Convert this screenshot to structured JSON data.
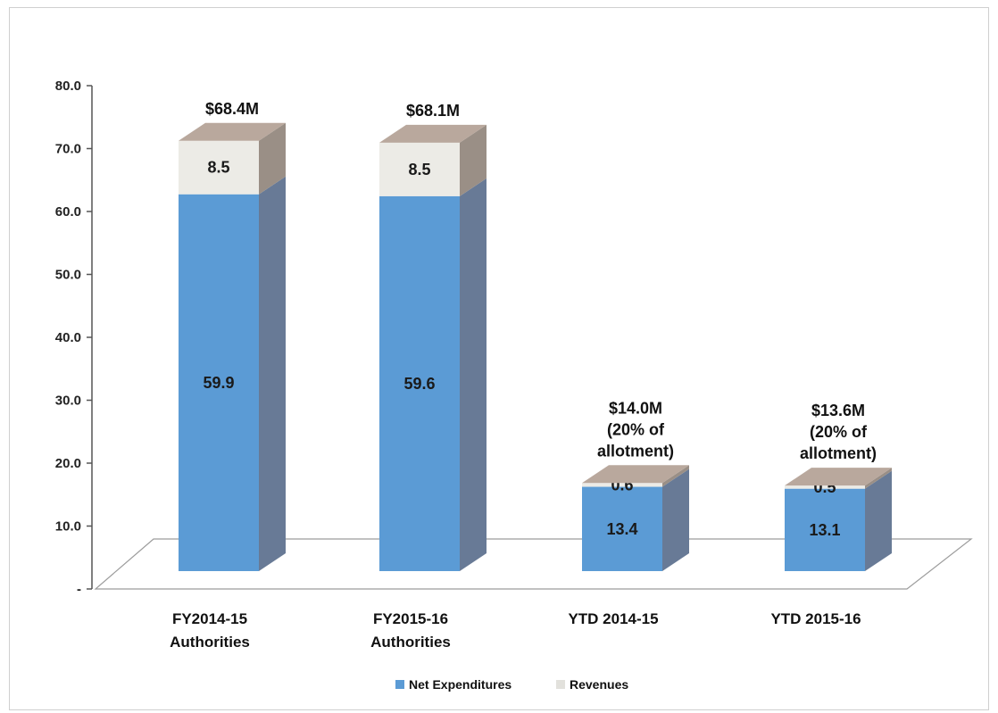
{
  "chart_data": {
    "type": "bar",
    "stacked": true,
    "style": "3d",
    "categories": [
      [
        "FY2014-15",
        "Authorities"
      ],
      [
        "FY2015-16",
        "Authorities"
      ],
      [
        "YTD 2014-15"
      ],
      [
        "YTD 2015-16"
      ]
    ],
    "series": [
      {
        "name": "Net Expenditures",
        "values": [
          59.9,
          59.6,
          13.4,
          13.1
        ],
        "color": "#5b9bd5"
      },
      {
        "name": "Revenues",
        "values": [
          8.5,
          8.5,
          0.6,
          0.5
        ],
        "color": "#ecebe6"
      }
    ],
    "data_labels": {
      "Net Expenditures": [
        "59.9",
        "59.6",
        "13.4",
        "13.1"
      ],
      "Revenues": [
        "8.5",
        "8.5",
        "0.6",
        "0.5"
      ]
    },
    "totals": [
      [
        "$68.4M"
      ],
      [
        "$68.1M"
      ],
      [
        "$14.0M",
        "(20% of",
        "allotment)"
      ],
      [
        "$13.6M",
        "(20% of",
        "allotment)"
      ]
    ],
    "ylim": [
      0,
      80
    ],
    "yticks": [
      {
        "value": 0,
        "label": "-"
      },
      {
        "value": 10,
        "label": "10.0"
      },
      {
        "value": 20,
        "label": "20.0"
      },
      {
        "value": 30,
        "label": "30.0"
      },
      {
        "value": 40,
        "label": "40.0"
      },
      {
        "value": 50,
        "label": "50.0"
      },
      {
        "value": 60,
        "label": "60.0"
      },
      {
        "value": 70,
        "label": "70.0"
      },
      {
        "value": 80,
        "label": "80.0"
      }
    ],
    "grid": false,
    "legend": {
      "position": "bottom",
      "entries": [
        "Net Expenditures",
        "Revenues"
      ]
    },
    "title": "",
    "xlabel": "",
    "ylabel": ""
  }
}
